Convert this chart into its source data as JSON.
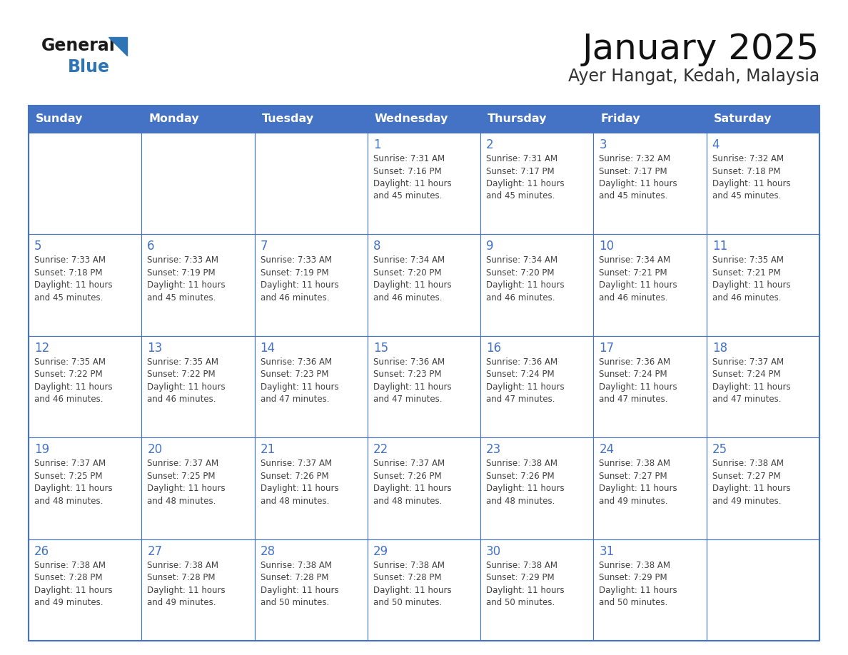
{
  "title": "January 2025",
  "subtitle": "Ayer Hangat, Kedah, Malaysia",
  "days_of_week": [
    "Sunday",
    "Monday",
    "Tuesday",
    "Wednesday",
    "Thursday",
    "Friday",
    "Saturday"
  ],
  "header_bg": "#4472C4",
  "header_text": "#FFFFFF",
  "cell_bg": "#FFFFFF",
  "cell_border": "#4472C4",
  "day_num_color": "#4472C4",
  "text_color": "#404040",
  "logo_general_color": "#1a1a1a",
  "logo_blue_color": "#2E75B6",
  "title_color": "#111111",
  "subtitle_color": "#333333",
  "calendar_data": [
    [
      {
        "day": null,
        "info": null
      },
      {
        "day": null,
        "info": null
      },
      {
        "day": null,
        "info": null
      },
      {
        "day": 1,
        "info": "Sunrise: 7:31 AM\nSunset: 7:16 PM\nDaylight: 11 hours\nand 45 minutes."
      },
      {
        "day": 2,
        "info": "Sunrise: 7:31 AM\nSunset: 7:17 PM\nDaylight: 11 hours\nand 45 minutes."
      },
      {
        "day": 3,
        "info": "Sunrise: 7:32 AM\nSunset: 7:17 PM\nDaylight: 11 hours\nand 45 minutes."
      },
      {
        "day": 4,
        "info": "Sunrise: 7:32 AM\nSunset: 7:18 PM\nDaylight: 11 hours\nand 45 minutes."
      }
    ],
    [
      {
        "day": 5,
        "info": "Sunrise: 7:33 AM\nSunset: 7:18 PM\nDaylight: 11 hours\nand 45 minutes."
      },
      {
        "day": 6,
        "info": "Sunrise: 7:33 AM\nSunset: 7:19 PM\nDaylight: 11 hours\nand 45 minutes."
      },
      {
        "day": 7,
        "info": "Sunrise: 7:33 AM\nSunset: 7:19 PM\nDaylight: 11 hours\nand 46 minutes."
      },
      {
        "day": 8,
        "info": "Sunrise: 7:34 AM\nSunset: 7:20 PM\nDaylight: 11 hours\nand 46 minutes."
      },
      {
        "day": 9,
        "info": "Sunrise: 7:34 AM\nSunset: 7:20 PM\nDaylight: 11 hours\nand 46 minutes."
      },
      {
        "day": 10,
        "info": "Sunrise: 7:34 AM\nSunset: 7:21 PM\nDaylight: 11 hours\nand 46 minutes."
      },
      {
        "day": 11,
        "info": "Sunrise: 7:35 AM\nSunset: 7:21 PM\nDaylight: 11 hours\nand 46 minutes."
      }
    ],
    [
      {
        "day": 12,
        "info": "Sunrise: 7:35 AM\nSunset: 7:22 PM\nDaylight: 11 hours\nand 46 minutes."
      },
      {
        "day": 13,
        "info": "Sunrise: 7:35 AM\nSunset: 7:22 PM\nDaylight: 11 hours\nand 46 minutes."
      },
      {
        "day": 14,
        "info": "Sunrise: 7:36 AM\nSunset: 7:23 PM\nDaylight: 11 hours\nand 47 minutes."
      },
      {
        "day": 15,
        "info": "Sunrise: 7:36 AM\nSunset: 7:23 PM\nDaylight: 11 hours\nand 47 minutes."
      },
      {
        "day": 16,
        "info": "Sunrise: 7:36 AM\nSunset: 7:24 PM\nDaylight: 11 hours\nand 47 minutes."
      },
      {
        "day": 17,
        "info": "Sunrise: 7:36 AM\nSunset: 7:24 PM\nDaylight: 11 hours\nand 47 minutes."
      },
      {
        "day": 18,
        "info": "Sunrise: 7:37 AM\nSunset: 7:24 PM\nDaylight: 11 hours\nand 47 minutes."
      }
    ],
    [
      {
        "day": 19,
        "info": "Sunrise: 7:37 AM\nSunset: 7:25 PM\nDaylight: 11 hours\nand 48 minutes."
      },
      {
        "day": 20,
        "info": "Sunrise: 7:37 AM\nSunset: 7:25 PM\nDaylight: 11 hours\nand 48 minutes."
      },
      {
        "day": 21,
        "info": "Sunrise: 7:37 AM\nSunset: 7:26 PM\nDaylight: 11 hours\nand 48 minutes."
      },
      {
        "day": 22,
        "info": "Sunrise: 7:37 AM\nSunset: 7:26 PM\nDaylight: 11 hours\nand 48 minutes."
      },
      {
        "day": 23,
        "info": "Sunrise: 7:38 AM\nSunset: 7:26 PM\nDaylight: 11 hours\nand 48 minutes."
      },
      {
        "day": 24,
        "info": "Sunrise: 7:38 AM\nSunset: 7:27 PM\nDaylight: 11 hours\nand 49 minutes."
      },
      {
        "day": 25,
        "info": "Sunrise: 7:38 AM\nSunset: 7:27 PM\nDaylight: 11 hours\nand 49 minutes."
      }
    ],
    [
      {
        "day": 26,
        "info": "Sunrise: 7:38 AM\nSunset: 7:28 PM\nDaylight: 11 hours\nand 49 minutes."
      },
      {
        "day": 27,
        "info": "Sunrise: 7:38 AM\nSunset: 7:28 PM\nDaylight: 11 hours\nand 49 minutes."
      },
      {
        "day": 28,
        "info": "Sunrise: 7:38 AM\nSunset: 7:28 PM\nDaylight: 11 hours\nand 50 minutes."
      },
      {
        "day": 29,
        "info": "Sunrise: 7:38 AM\nSunset: 7:28 PM\nDaylight: 11 hours\nand 50 minutes."
      },
      {
        "day": 30,
        "info": "Sunrise: 7:38 AM\nSunset: 7:29 PM\nDaylight: 11 hours\nand 50 minutes."
      },
      {
        "day": 31,
        "info": "Sunrise: 7:38 AM\nSunset: 7:29 PM\nDaylight: 11 hours\nand 50 minutes."
      },
      {
        "day": null,
        "info": null
      }
    ]
  ]
}
